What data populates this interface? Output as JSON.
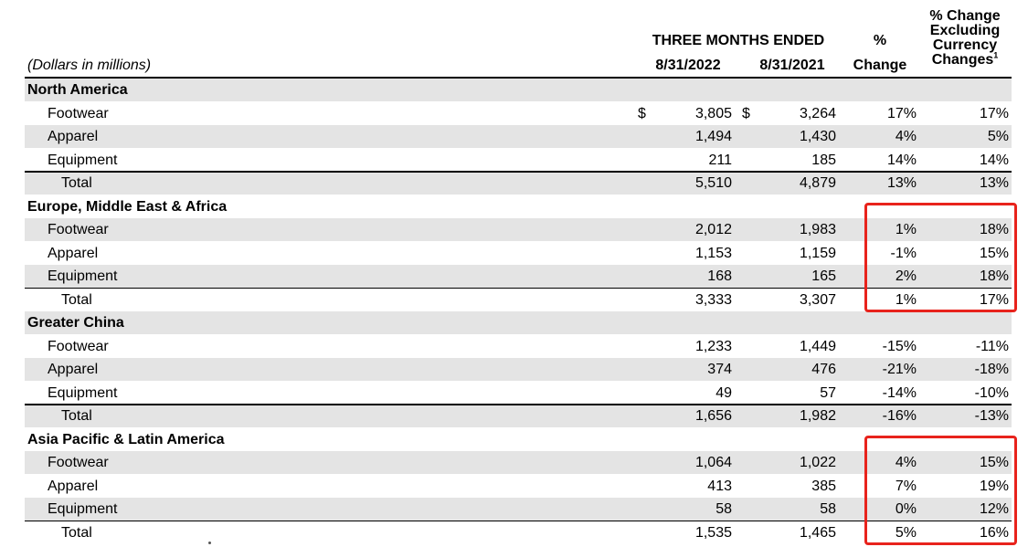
{
  "header": {
    "units": "(Dollars in millions)",
    "period": "THREE MONTHS ENDED",
    "col1": "8/31/2022",
    "col2": "8/31/2021",
    "pct_top": "%",
    "pct_bottom": "Change",
    "excl_lines": [
      "% Change",
      "Excluding",
      "Currency",
      "Changes"
    ],
    "footnote_mark": "1"
  },
  "colors": {
    "shade": "#e4e4e4",
    "highlight": "#e8231c"
  },
  "rows": [
    {
      "label": "North America",
      "type": "region",
      "shaded": true
    },
    {
      "label": "Footwear",
      "type": "item",
      "dollar": "$",
      "v1": "3,805",
      "v2": "3,264",
      "pct": "17%",
      "excl": "17%",
      "shaded": false
    },
    {
      "label": "Apparel",
      "type": "item",
      "v1": "1,494",
      "v2": "1,430",
      "pct": "4%",
      "excl": "5%",
      "shaded": true
    },
    {
      "label": "Equipment",
      "type": "item",
      "v1": "211",
      "v2": "185",
      "pct": "14%",
      "excl": "14%",
      "shaded": false
    },
    {
      "label": "Total",
      "type": "total",
      "v1": "5,510",
      "v2": "4,879",
      "pct": "13%",
      "excl": "13%",
      "shaded": true
    },
    {
      "label": "Europe, Middle East & Africa",
      "type": "region",
      "shaded": false
    },
    {
      "label": "Footwear",
      "type": "item",
      "v1": "2,012",
      "v2": "1,983",
      "pct": "1%",
      "excl": "18%",
      "shaded": true
    },
    {
      "label": "Apparel",
      "type": "item",
      "v1": "1,153",
      "v2": "1,159",
      "pct": "-1%",
      "excl": "15%",
      "shaded": false
    },
    {
      "label": "Equipment",
      "type": "item",
      "v1": "168",
      "v2": "165",
      "pct": "2%",
      "excl": "18%",
      "shaded": true
    },
    {
      "label": "Total",
      "type": "total",
      "v1": "3,333",
      "v2": "3,307",
      "pct": "1%",
      "excl": "17%",
      "shaded": false
    },
    {
      "label": "Greater China",
      "type": "region",
      "shaded": true
    },
    {
      "label": "Footwear",
      "type": "item",
      "v1": "1,233",
      "v2": "1,449",
      "pct": "-15%",
      "excl": "-11%",
      "shaded": false
    },
    {
      "label": "Apparel",
      "type": "item",
      "v1": "374",
      "v2": "476",
      "pct": "-21%",
      "excl": "-18%",
      "shaded": true
    },
    {
      "label": "Equipment",
      "type": "item",
      "v1": "49",
      "v2": "57",
      "pct": "-14%",
      "excl": "-10%",
      "shaded": false
    },
    {
      "label": "Total",
      "type": "total",
      "v1": "1,656",
      "v2": "1,982",
      "pct": "-16%",
      "excl": "-13%",
      "shaded": true
    },
    {
      "label": "Asia Pacific & Latin America",
      "type": "region",
      "shaded": false
    },
    {
      "label": "Footwear",
      "type": "item",
      "v1": "1,064",
      "v2": "1,022",
      "pct": "4%",
      "excl": "15%",
      "shaded": true
    },
    {
      "label": "Apparel",
      "type": "item",
      "v1": "413",
      "v2": "385",
      "pct": "7%",
      "excl": "19%",
      "shaded": false
    },
    {
      "label": "Equipment",
      "type": "item",
      "v1": "58",
      "v2": "58",
      "pct": "0%",
      "excl": "12%",
      "shaded": true
    },
    {
      "label": "Total",
      "type": "total",
      "v1": "1,535",
      "v2": "1,465",
      "pct": "5%",
      "excl": "16%",
      "shaded": false
    }
  ]
}
